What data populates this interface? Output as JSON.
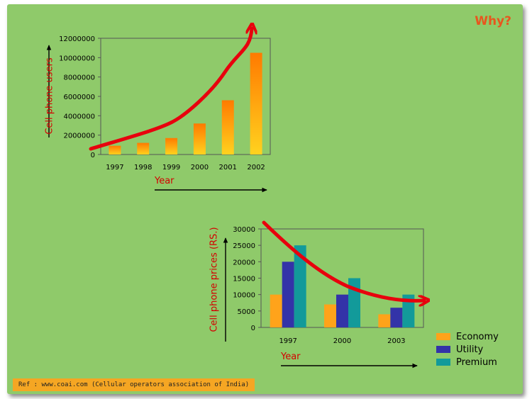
{
  "slide": {
    "heading": "Why?",
    "reference": "Ref : www.coai.com (Cellular operators association of India)"
  },
  "chart_data": [
    {
      "type": "bar",
      "categories": [
        "1997",
        "1998",
        "1999",
        "2000",
        "2001",
        "2002"
      ],
      "values": [
        900000,
        1200000,
        1700000,
        3200000,
        5600000,
        10500000
      ],
      "ylim": [
        0,
        12000000
      ],
      "yticks": [
        "0",
        "2000000",
        "4000000",
        "6000000",
        "8000000",
        "10000000",
        "12000000"
      ],
      "ylabel": "Cell phone users",
      "xlabel": "Year",
      "bar_color_top": "#ff7a00",
      "bar_color_bottom": "#ffd21f",
      "trend_color": "#e8000d",
      "grid": false
    },
    {
      "type": "bar",
      "categories": [
        "1997",
        "2000",
        "2003"
      ],
      "series": [
        {
          "name": "Economy",
          "values": [
            10000,
            7000,
            4000
          ],
          "color": "#ffa31a"
        },
        {
          "name": "Utility",
          "values": [
            20000,
            10000,
            6000
          ],
          "color": "#3333a8"
        },
        {
          "name": "Premium",
          "values": [
            25000,
            15000,
            10000
          ],
          "color": "#129a9a"
        }
      ],
      "ylim": [
        0,
        30000
      ],
      "yticks": [
        "0",
        "5000",
        "10000",
        "15000",
        "20000",
        "25000",
        "30000"
      ],
      "ylabel": "Cell phone prices (RS.)",
      "xlabel": "Year",
      "legend": "right",
      "trend_color": "#e8000d",
      "grid": false
    }
  ]
}
